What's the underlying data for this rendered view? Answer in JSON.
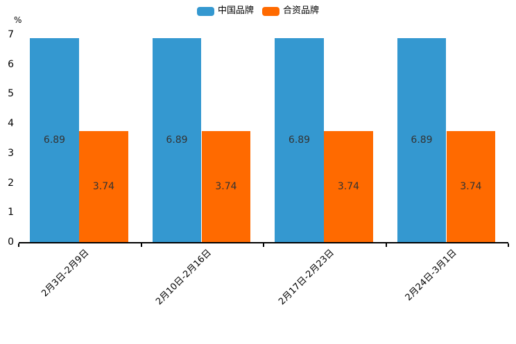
{
  "chart_data": {
    "type": "bar",
    "categories": [
      "2月3日-2月9日",
      "2月10日-2月16日",
      "2月17日-2月23日",
      "2月24日-3月1日"
    ],
    "series": [
      {
        "name": "中国品牌",
        "color": "#3498d0",
        "values": [
          6.89,
          6.89,
          6.89,
          6.89
        ]
      },
      {
        "name": "合资品牌",
        "color": "#ff6a00",
        "values": [
          3.74,
          3.74,
          3.74,
          3.74
        ]
      }
    ],
    "title": "",
    "xlabel": "",
    "ylabel": "%",
    "ylim": [
      0,
      7
    ],
    "yticks": [
      0,
      1,
      2,
      3,
      4,
      5,
      6,
      7
    ],
    "legend_position": "top",
    "grid": false,
    "value_labels_shown": true,
    "value_label_color": "#333333",
    "axis_color": "#000000",
    "x_label_rotation_deg": 45
  }
}
